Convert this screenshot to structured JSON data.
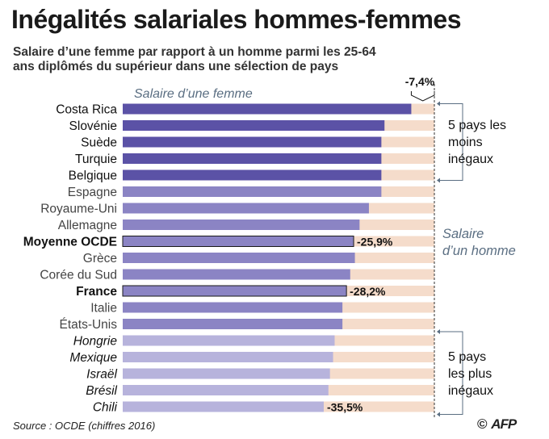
{
  "title": "Inégalités salariales hommes-femmes",
  "subtitle": "Salaire d’une femme par rapport à un homme parmi les 25-64 ans diplômés du supérieur dans une sélection de pays",
  "source": "Source : OCDE (chiffres 2016)",
  "credit": {
    "copyright": "©",
    "brand": "AFP"
  },
  "colors": {
    "least_unequal": "#5b52a6",
    "middle": "#8b84c4",
    "most_unequal": "#b7b3dc",
    "men_background": "#f5dccb",
    "annotation": "#5a6e82",
    "text": "#1a1a1a"
  },
  "chart_data": {
    "type": "bar",
    "orientation": "horizontal",
    "women_label": "Salaire d’une femme",
    "men_label": "Salaire d’un homme",
    "top_group_label": "5 pays les moins inégaux",
    "bottom_group_label": "5 pays les plus inégaux",
    "categories": [
      "Costa Rica",
      "Slovénie",
      "Suède",
      "Turquie",
      "Belgique",
      "Espagne",
      "Royaume-Uni",
      "Allemagne",
      "Moyenne OCDE",
      "Grèce",
      "Corée du Sud",
      "France",
      "Italie",
      "États-Unis",
      "Hongrie",
      "Mexique",
      "Israël",
      "Brésil",
      "Chili"
    ],
    "gap_percent": [
      7.4,
      16.0,
      17.0,
      17.0,
      17.0,
      17.0,
      21.0,
      24.0,
      25.9,
      25.5,
      27.0,
      28.2,
      29.5,
      29.5,
      32.0,
      32.5,
      33.5,
      34.0,
      35.5
    ],
    "group": [
      "top",
      "top",
      "top",
      "top",
      "top",
      "middle",
      "middle",
      "middle",
      "middle",
      "middle",
      "middle",
      "middle",
      "middle",
      "middle",
      "bottom",
      "bottom",
      "bottom",
      "bottom",
      "bottom"
    ],
    "bold_labels": [
      "Moyenne OCDE",
      "France"
    ],
    "italic_labels": [
      "Hongrie",
      "Mexique",
      "Israël",
      "Brésil",
      "Chili"
    ],
    "value_labels": [
      {
        "category": "Costa Rica",
        "text": "-7,4%"
      },
      {
        "category": "Moyenne OCDE",
        "text": "-25,9%"
      },
      {
        "category": "France",
        "text": "-28,2%"
      },
      {
        "category": "Chili",
        "text": "-35,5%"
      }
    ]
  }
}
